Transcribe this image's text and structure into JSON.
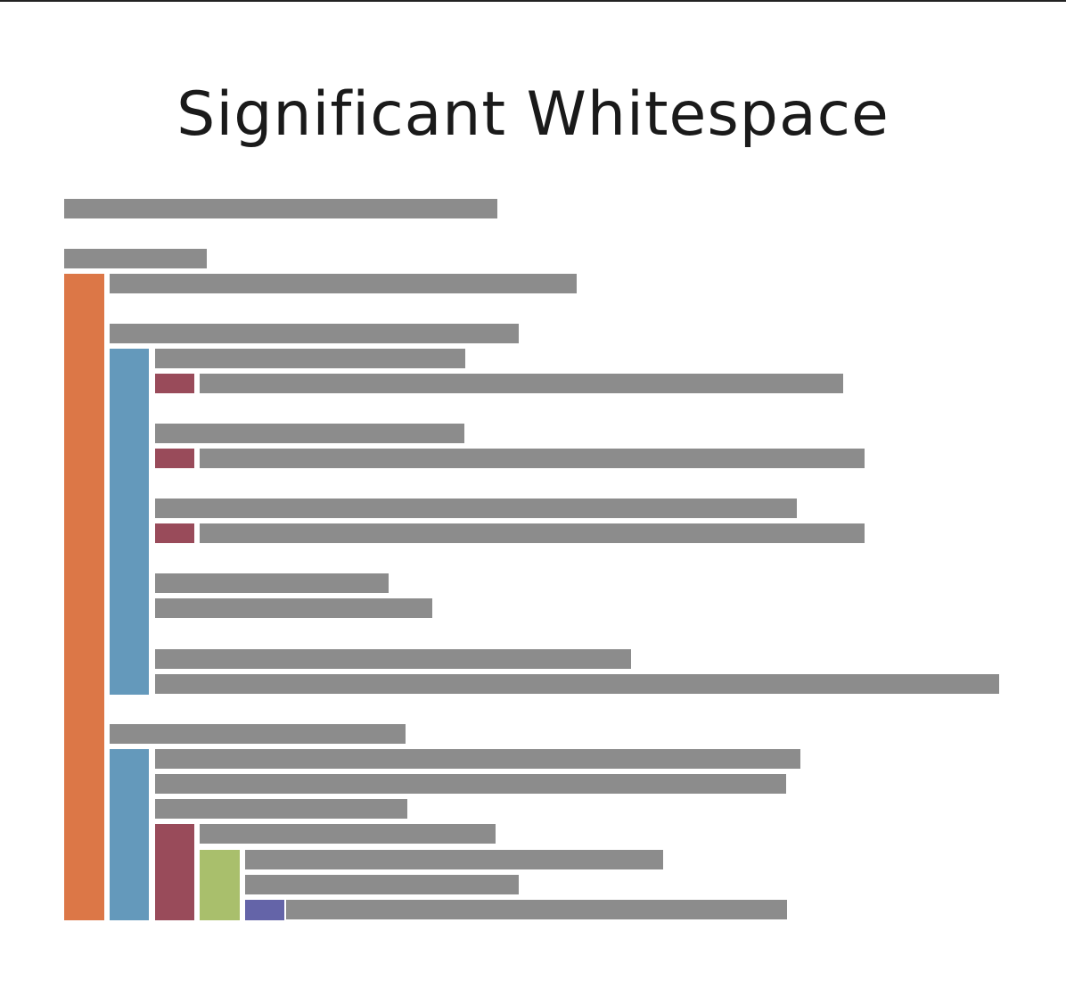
{
  "title": "Significant Whitespace",
  "colors": {
    "text_line": "#8c8c8c",
    "level_1": "#dc7747",
    "level_2": "#6499bb",
    "level_3": "#994b5a",
    "level_4": "#a9bf6c",
    "level_5": "#6464a8"
  },
  "legend_note": ""
}
